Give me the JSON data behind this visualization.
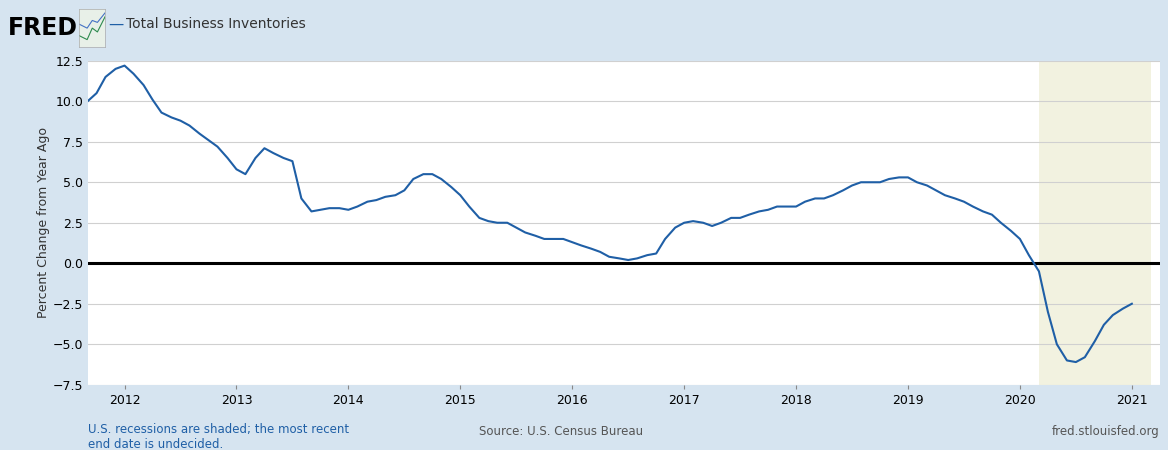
{
  "title": "Total Business Inventories",
  "ylabel": "Percent Change from Year Ago",
  "ylim": [
    -7.5,
    12.5
  ],
  "yticks": [
    -7.5,
    -5.0,
    -2.5,
    0.0,
    2.5,
    5.0,
    7.5,
    10.0,
    12.5
  ],
  "bg_color": "#d6e4f0",
  "plot_bg_color": "#ffffff",
  "recession_color": "#f2f2e0",
  "recession_start": 2020.17,
  "recession_end": 2021.17,
  "line_color": "#1f5fa6",
  "zero_line_color": "#000000",
  "source_text": "Source: U.S. Census Bureau",
  "fred_text": "fred.stlouisfed.org",
  "recession_text": "U.S. recessions are shaded; the most recent\nend date is undecided.",
  "recession_text_color": "#1f5fa6",
  "xticks": [
    2012,
    2013,
    2014,
    2015,
    2016,
    2017,
    2018,
    2019,
    2020,
    2021
  ],
  "xlim_left": 2011.67,
  "xlim_right": 2021.25,
  "data": [
    [
      2011.67,
      10.0
    ],
    [
      2011.75,
      10.5
    ],
    [
      2011.83,
      11.5
    ],
    [
      2011.92,
      12.0
    ],
    [
      2012.0,
      12.2
    ],
    [
      2012.08,
      11.7
    ],
    [
      2012.17,
      11.0
    ],
    [
      2012.25,
      10.1
    ],
    [
      2012.33,
      9.3
    ],
    [
      2012.42,
      9.0
    ],
    [
      2012.5,
      8.8
    ],
    [
      2012.58,
      8.5
    ],
    [
      2012.67,
      8.0
    ],
    [
      2012.75,
      7.6
    ],
    [
      2012.83,
      7.2
    ],
    [
      2012.92,
      6.5
    ],
    [
      2013.0,
      5.8
    ],
    [
      2013.08,
      5.5
    ],
    [
      2013.17,
      6.5
    ],
    [
      2013.25,
      7.1
    ],
    [
      2013.33,
      6.8
    ],
    [
      2013.42,
      6.5
    ],
    [
      2013.5,
      6.3
    ],
    [
      2013.58,
      4.0
    ],
    [
      2013.67,
      3.2
    ],
    [
      2013.75,
      3.3
    ],
    [
      2013.83,
      3.4
    ],
    [
      2013.92,
      3.4
    ],
    [
      2014.0,
      3.3
    ],
    [
      2014.08,
      3.5
    ],
    [
      2014.17,
      3.8
    ],
    [
      2014.25,
      3.9
    ],
    [
      2014.33,
      4.1
    ],
    [
      2014.42,
      4.2
    ],
    [
      2014.5,
      4.5
    ],
    [
      2014.58,
      5.2
    ],
    [
      2014.67,
      5.5
    ],
    [
      2014.75,
      5.5
    ],
    [
      2014.83,
      5.2
    ],
    [
      2014.92,
      4.7
    ],
    [
      2015.0,
      4.2
    ],
    [
      2015.08,
      3.5
    ],
    [
      2015.17,
      2.8
    ],
    [
      2015.25,
      2.6
    ],
    [
      2015.33,
      2.5
    ],
    [
      2015.42,
      2.5
    ],
    [
      2015.5,
      2.2
    ],
    [
      2015.58,
      1.9
    ],
    [
      2015.67,
      1.7
    ],
    [
      2015.75,
      1.5
    ],
    [
      2015.83,
      1.5
    ],
    [
      2015.92,
      1.5
    ],
    [
      2016.0,
      1.3
    ],
    [
      2016.08,
      1.1
    ],
    [
      2016.17,
      0.9
    ],
    [
      2016.25,
      0.7
    ],
    [
      2016.33,
      0.4
    ],
    [
      2016.42,
      0.3
    ],
    [
      2016.5,
      0.2
    ],
    [
      2016.58,
      0.3
    ],
    [
      2016.67,
      0.5
    ],
    [
      2016.75,
      0.6
    ],
    [
      2016.83,
      1.5
    ],
    [
      2016.92,
      2.2
    ],
    [
      2017.0,
      2.5
    ],
    [
      2017.08,
      2.6
    ],
    [
      2017.17,
      2.5
    ],
    [
      2017.25,
      2.3
    ],
    [
      2017.33,
      2.5
    ],
    [
      2017.42,
      2.8
    ],
    [
      2017.5,
      2.8
    ],
    [
      2017.58,
      3.0
    ],
    [
      2017.67,
      3.2
    ],
    [
      2017.75,
      3.3
    ],
    [
      2017.83,
      3.5
    ],
    [
      2017.92,
      3.5
    ],
    [
      2018.0,
      3.5
    ],
    [
      2018.08,
      3.8
    ],
    [
      2018.17,
      4.0
    ],
    [
      2018.25,
      4.0
    ],
    [
      2018.33,
      4.2
    ],
    [
      2018.42,
      4.5
    ],
    [
      2018.5,
      4.8
    ],
    [
      2018.58,
      5.0
    ],
    [
      2018.67,
      5.0
    ],
    [
      2018.75,
      5.0
    ],
    [
      2018.83,
      5.2
    ],
    [
      2018.92,
      5.3
    ],
    [
      2019.0,
      5.3
    ],
    [
      2019.08,
      5.0
    ],
    [
      2019.17,
      4.8
    ],
    [
      2019.25,
      4.5
    ],
    [
      2019.33,
      4.2
    ],
    [
      2019.42,
      4.0
    ],
    [
      2019.5,
      3.8
    ],
    [
      2019.58,
      3.5
    ],
    [
      2019.67,
      3.2
    ],
    [
      2019.75,
      3.0
    ],
    [
      2019.83,
      2.5
    ],
    [
      2019.92,
      2.0
    ],
    [
      2020.0,
      1.5
    ],
    [
      2020.08,
      0.5
    ],
    [
      2020.17,
      -0.5
    ],
    [
      2020.25,
      -3.0
    ],
    [
      2020.33,
      -5.0
    ],
    [
      2020.42,
      -6.0
    ],
    [
      2020.5,
      -6.1
    ],
    [
      2020.58,
      -5.8
    ],
    [
      2020.67,
      -4.8
    ],
    [
      2020.75,
      -3.8
    ],
    [
      2020.83,
      -3.2
    ],
    [
      2020.92,
      -2.8
    ],
    [
      2021.0,
      -2.5
    ]
  ]
}
